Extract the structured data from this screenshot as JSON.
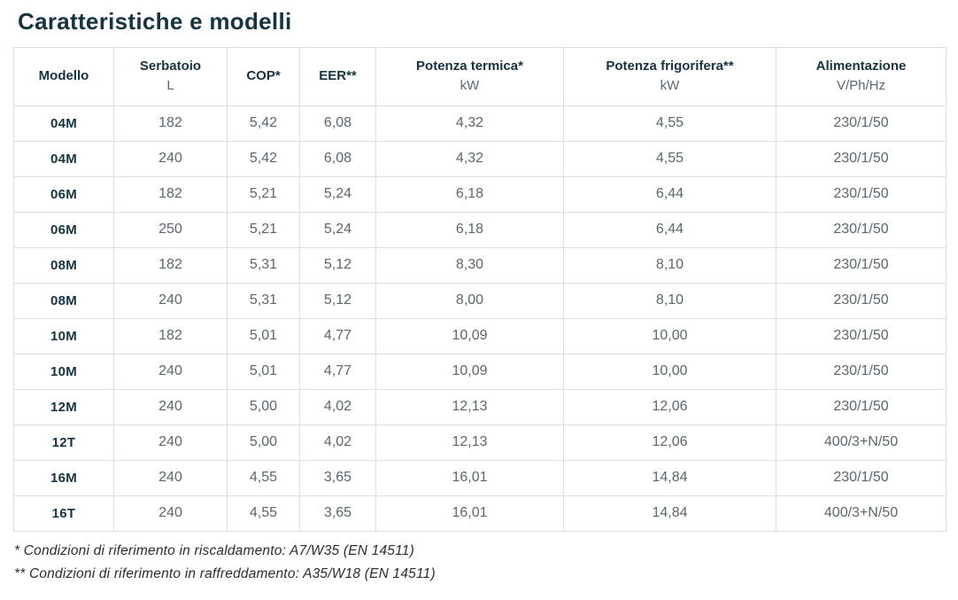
{
  "page": {
    "title": "Caratteristiche e modelli"
  },
  "colors": {
    "heading_text": "#163340",
    "body_text": "#5a6771",
    "border": "#dcdfe2",
    "background": "#ffffff"
  },
  "table": {
    "columns": [
      {
        "label": "Modello",
        "sub": ""
      },
      {
        "label": "Serbatoio",
        "sub": "L"
      },
      {
        "label": "COP*",
        "sub": ""
      },
      {
        "label": "EER**",
        "sub": ""
      },
      {
        "label": "Potenza termica*",
        "sub": "kW"
      },
      {
        "label": "Potenza frigorifera**",
        "sub": "kW"
      },
      {
        "label": "Alimentazione",
        "sub": "V/Ph/Hz"
      }
    ],
    "rows": [
      [
        "04M",
        "182",
        "5,42",
        "6,08",
        "4,32",
        "4,55",
        "230/1/50"
      ],
      [
        "04M",
        "240",
        "5,42",
        "6,08",
        "4,32",
        "4,55",
        "230/1/50"
      ],
      [
        "06M",
        "182",
        "5,21",
        "5,24",
        "6,18",
        "6,44",
        "230/1/50"
      ],
      [
        "06M",
        "250",
        "5,21",
        "5,24",
        "6,18",
        "6,44",
        "230/1/50"
      ],
      [
        "08M",
        "182",
        "5,31",
        "5,12",
        "8,30",
        "8,10",
        "230/1/50"
      ],
      [
        "08M",
        "240",
        "5,31",
        "5,12",
        "8,00",
        "8,10",
        "230/1/50"
      ],
      [
        "10M",
        "182",
        "5,01",
        "4,77",
        "10,09",
        "10,00",
        "230/1/50"
      ],
      [
        "10M",
        "240",
        "5,01",
        "4,77",
        "10,09",
        "10,00",
        "230/1/50"
      ],
      [
        "12M",
        "240",
        "5,00",
        "4,02",
        "12,13",
        "12,06",
        "230/1/50"
      ],
      [
        "12T",
        "240",
        "5,00",
        "4,02",
        "12,13",
        "12,06",
        "400/3+N/50"
      ],
      [
        "16M",
        "240",
        "4,55",
        "3,65",
        "16,01",
        "14,84",
        "230/1/50"
      ],
      [
        "16T",
        "240",
        "4,55",
        "3,65",
        "16,01",
        "14,84",
        "400/3+N/50"
      ]
    ]
  },
  "footnotes": [
    "* Condizioni di riferimento in riscaldamento: A7/W35 (EN 14511)",
    "** Condizioni di riferimento in raffreddamento: A35/W18 (EN 14511)"
  ]
}
